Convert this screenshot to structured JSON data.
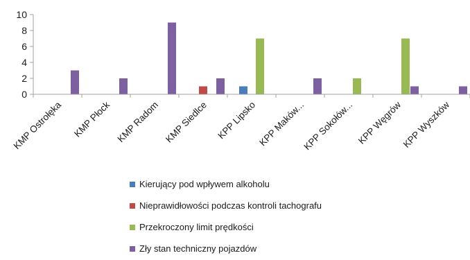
{
  "chart_data": {
    "type": "bar",
    "categories": [
      "KMP Ostrołęka",
      "KMP Płock",
      "KMP Radom",
      "KMP Siedlce",
      "KPP Lipsko",
      "KPP Maków...",
      "KPP Sokołów...",
      "KPP Węgrów",
      "KPP Wyszków"
    ],
    "series": [
      {
        "name": "Kierujący pod wpływem alkoholu",
        "color": "#4a7ebb",
        "values": [
          0,
          0,
          0,
          0,
          1,
          0,
          0,
          0,
          0
        ]
      },
      {
        "name": "Nieprawidłowości podczas kontroli tachografu",
        "color": "#be4b48",
        "values": [
          0,
          0,
          0,
          1,
          0,
          0,
          0,
          0,
          0
        ]
      },
      {
        "name": "Przekroczony limit prędkości",
        "color": "#98b954",
        "values": [
          0,
          0,
          0,
          0,
          7,
          0,
          2,
          7,
          0
        ]
      },
      {
        "name": "Zły stan techniczny pojazdów",
        "color": "#7d60a0",
        "values": [
          3,
          2,
          9,
          2,
          0,
          2,
          0,
          1,
          1
        ]
      }
    ],
    "ylim": [
      0,
      10
    ],
    "yticks": [
      0,
      2,
      4,
      6,
      8,
      10
    ],
    "grid": false,
    "legend_position": "bottom"
  }
}
